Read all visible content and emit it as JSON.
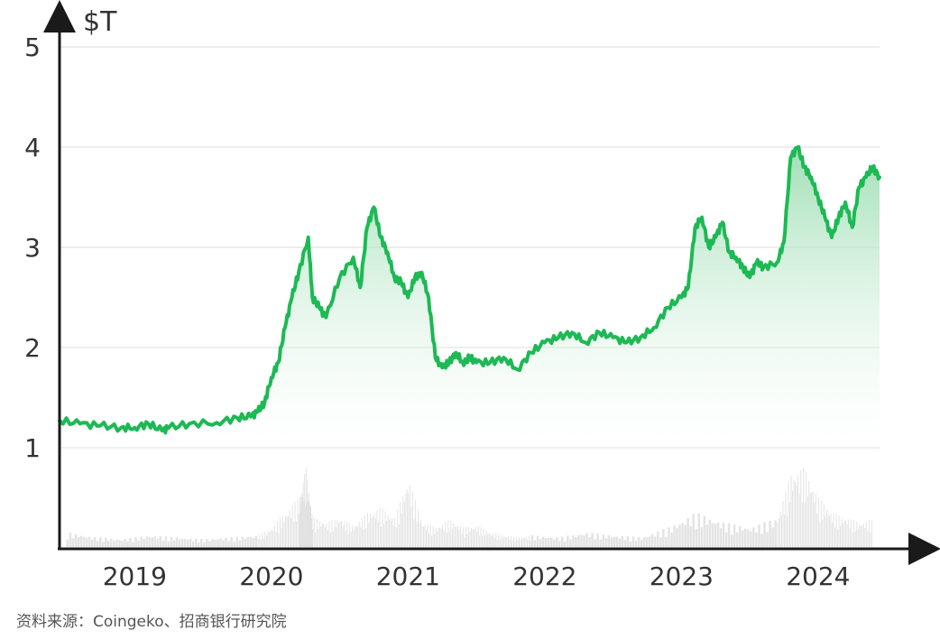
{
  "chart_data": {
    "type": "area",
    "y_unit": "$T",
    "y_ticks": [
      "1",
      "2",
      "3",
      "4",
      "5"
    ],
    "ylim": [
      0,
      5
    ],
    "x_ticks": [
      "2019",
      "2020",
      "2021",
      "2022",
      "2023",
      "2024"
    ],
    "xlim": [
      2018.55,
      2024.55
    ],
    "grid": true,
    "legend": "none",
    "series": [
      {
        "x": [
          2018.55,
          2018.7,
          2018.85,
          2019.0,
          2019.1,
          2019.2,
          2019.3,
          2019.35,
          2019.5,
          2019.7,
          2019.85,
          2019.95,
          2020.0,
          2020.05,
          2020.1,
          2020.15,
          2020.2,
          2020.25,
          2020.3,
          2020.37,
          2020.4,
          2020.45,
          2020.5,
          2020.6,
          2020.7,
          2020.75,
          2020.8,
          2020.85,
          2020.9,
          2020.95,
          2021.0,
          2021.05,
          2021.1,
          2021.15,
          2021.2,
          2021.25,
          2021.3,
          2021.35,
          2021.4,
          2021.45,
          2021.5,
          2021.55,
          2021.6,
          2021.7,
          2021.8,
          2021.9,
          2022.0,
          2022.1,
          2022.2,
          2022.3,
          2022.4,
          2022.5,
          2022.6,
          2022.7,
          2022.8,
          2022.9,
          2023.0,
          2023.1,
          2023.15,
          2023.2,
          2023.25,
          2023.3,
          2023.35,
          2023.4,
          2023.45,
          2023.5,
          2023.55,
          2023.6,
          2023.65,
          2023.7,
          2023.8,
          2023.85,
          2023.9,
          2023.95,
          2024.0,
          2024.05,
          2024.1,
          2024.15,
          2024.2,
          2024.25,
          2024.3,
          2024.35,
          2024.4,
          2024.45,
          2024.5,
          2024.55
        ],
        "values": [
          1.27,
          1.24,
          1.22,
          1.2,
          1.2,
          1.24,
          1.17,
          1.2,
          1.24,
          1.25,
          1.3,
          1.31,
          1.36,
          1.45,
          1.7,
          1.85,
          2.2,
          2.5,
          2.75,
          3.1,
          2.5,
          2.4,
          2.3,
          2.7,
          2.9,
          2.6,
          3.2,
          3.4,
          3.1,
          2.95,
          2.7,
          2.65,
          2.5,
          2.7,
          2.75,
          2.5,
          1.9,
          1.8,
          1.85,
          1.95,
          1.85,
          1.9,
          1.85,
          1.85,
          1.9,
          1.78,
          1.95,
          2.05,
          2.1,
          2.15,
          2.05,
          2.15,
          2.1,
          2.05,
          2.1,
          2.2,
          2.4,
          2.5,
          2.6,
          3.2,
          3.3,
          3.0,
          3.1,
          3.25,
          2.95,
          2.9,
          2.8,
          2.7,
          2.85,
          2.8,
          2.85,
          3.05,
          3.9,
          4.0,
          3.8,
          3.7,
          3.5,
          3.3,
          3.1,
          3.3,
          3.45,
          3.2,
          3.6,
          3.7,
          3.8,
          3.7
        ]
      }
    ],
    "volume_series": {
      "note_style": "grey background bars",
      "x": [
        2018.6,
        2018.8,
        2019.0,
        2019.2,
        2019.4,
        2019.6,
        2019.8,
        2020.0,
        2020.1,
        2020.2,
        2020.3,
        2020.35,
        2020.4,
        2020.5,
        2020.6,
        2020.7,
        2020.8,
        2020.9,
        2021.0,
        2021.1,
        2021.2,
        2021.3,
        2021.4,
        2021.5,
        2021.6,
        2021.7,
        2021.8,
        2021.9,
        2022.0,
        2022.2,
        2022.4,
        2022.6,
        2022.8,
        2023.0,
        2023.2,
        2023.4,
        2023.6,
        2023.8,
        2023.9,
        2024.0,
        2024.1,
        2024.2,
        2024.3,
        2024.4,
        2024.5
      ],
      "values": [
        0.15,
        0.1,
        0.08,
        0.12,
        0.1,
        0.08,
        0.1,
        0.12,
        0.2,
        0.35,
        0.5,
        0.8,
        0.3,
        0.25,
        0.3,
        0.22,
        0.35,
        0.4,
        0.3,
        0.7,
        0.25,
        0.2,
        0.28,
        0.2,
        0.22,
        0.15,
        0.12,
        0.1,
        0.12,
        0.1,
        0.15,
        0.12,
        0.1,
        0.2,
        0.35,
        0.25,
        0.2,
        0.3,
        0.75,
        0.8,
        0.5,
        0.35,
        0.3,
        0.25,
        0.28
      ]
    }
  },
  "source_text": "资料来源：Coingeko、招商银行研究院",
  "colors": {
    "line": "#1db954",
    "area_top": "#8fd9a8",
    "area_bottom": "#ffffff",
    "grid": "#e8e8e8",
    "axis": "#1a1a1a",
    "volume": "#d9d9d9"
  }
}
